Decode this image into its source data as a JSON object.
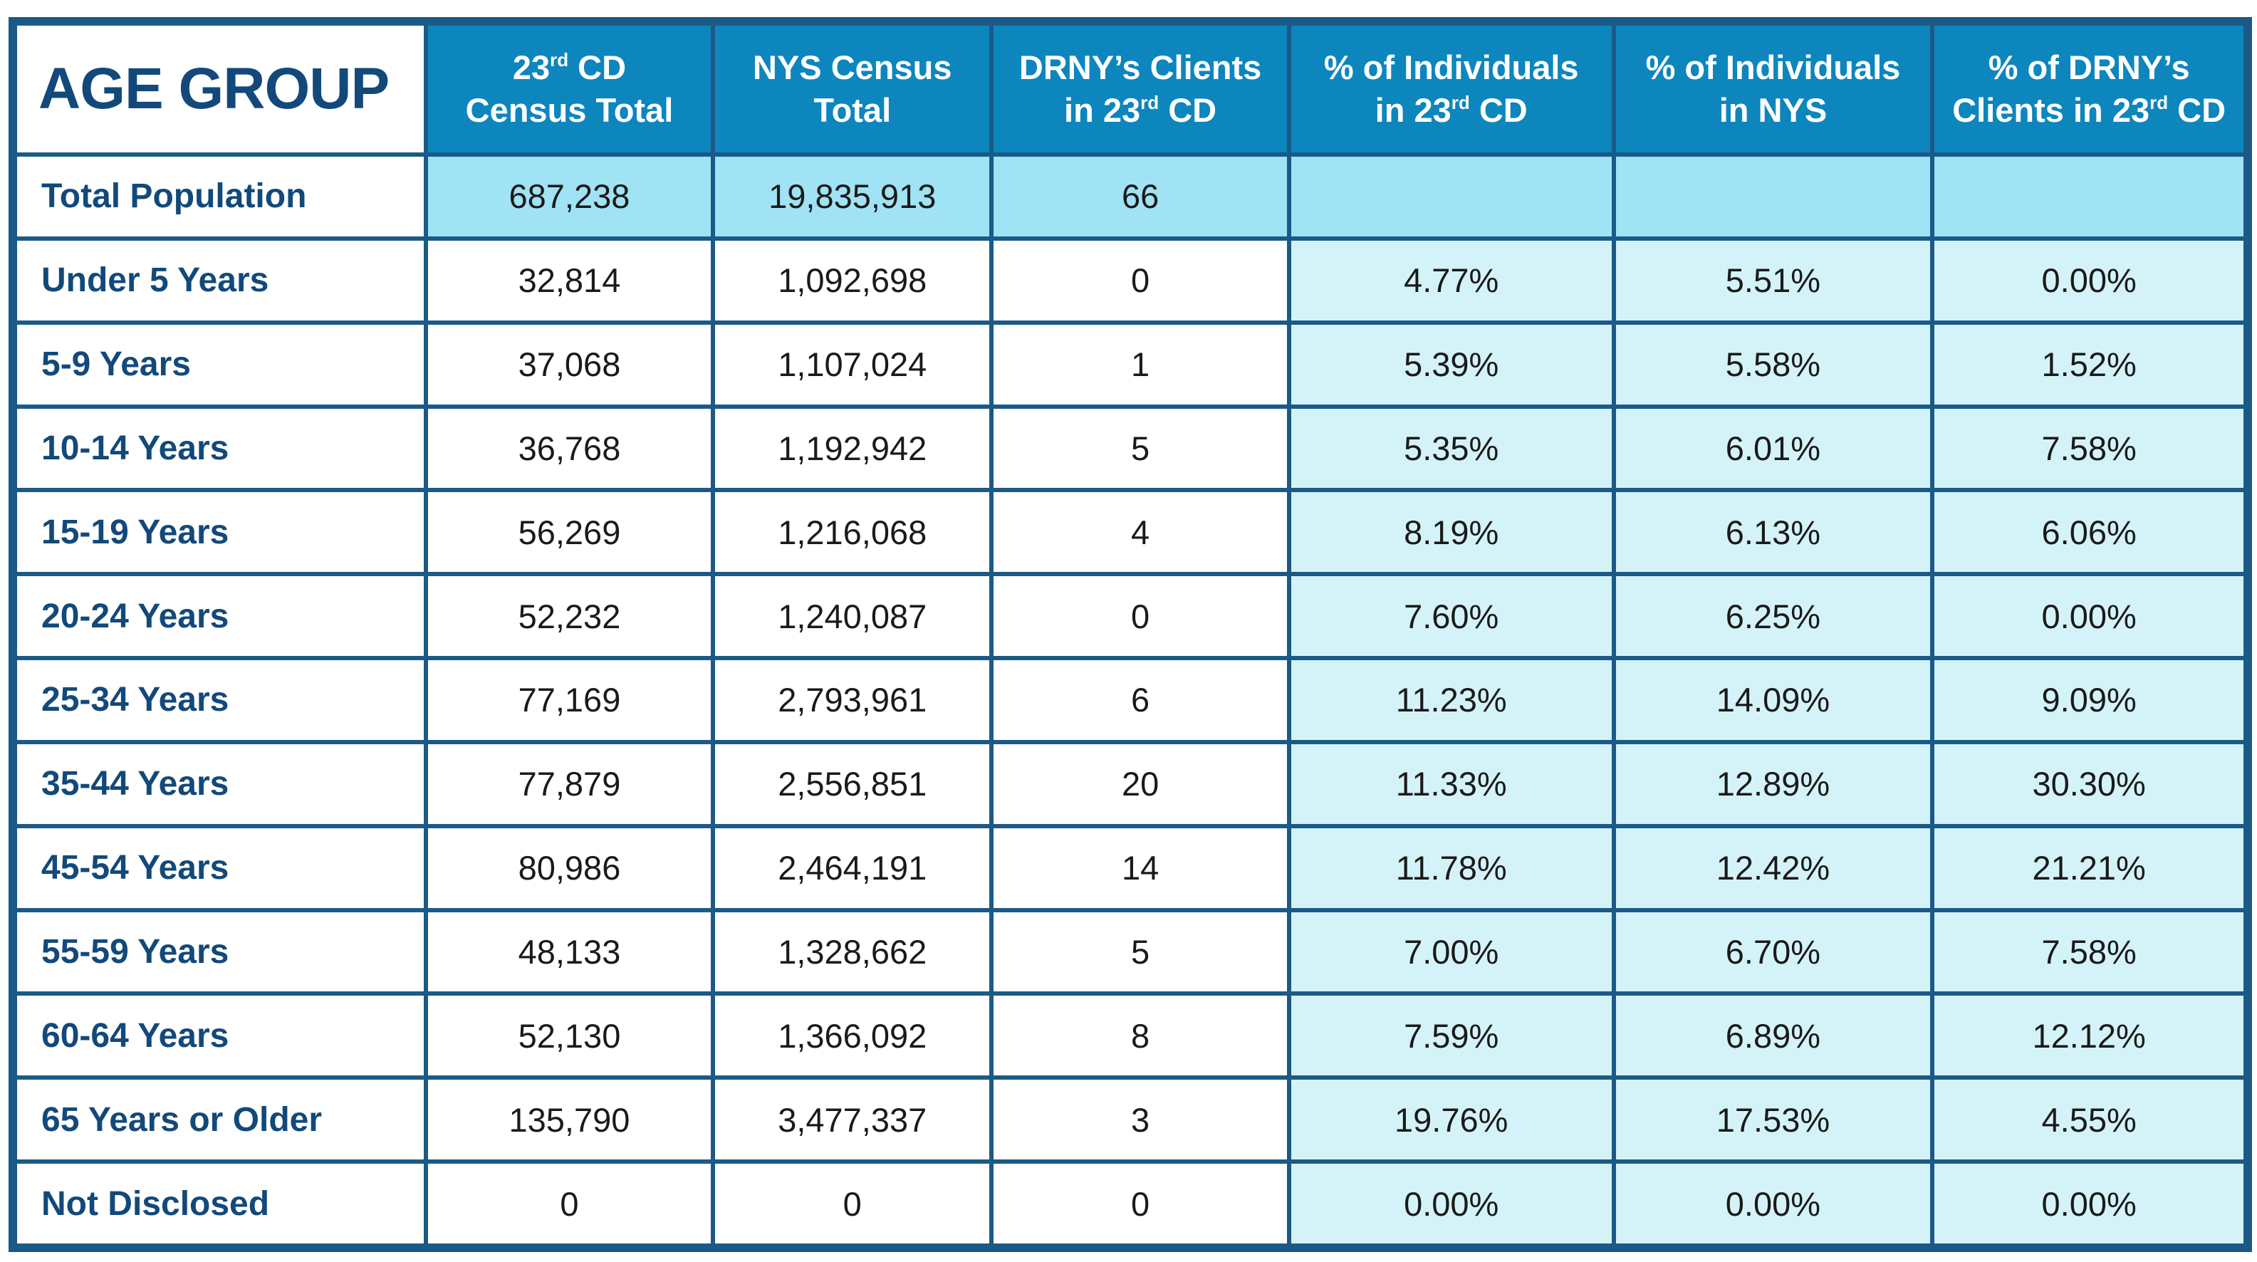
{
  "table": {
    "corner_label": "AGE GROUP",
    "headers": [
      {
        "line1_pre": "23",
        "line1_sup": "rd",
        "line1_post": " CD",
        "line2_pre": "Census Total",
        "line2_sup": "",
        "line2_post": ""
      },
      {
        "line1_pre": "NYS Census",
        "line1_sup": "",
        "line1_post": "",
        "line2_pre": "Total",
        "line2_sup": "",
        "line2_post": ""
      },
      {
        "line1_pre": "DRNY’s Clients",
        "line1_sup": "",
        "line1_post": "",
        "line2_pre": "in 23",
        "line2_sup": "rd",
        "line2_post": " CD"
      },
      {
        "line1_pre": "% of Individuals",
        "line1_sup": "",
        "line1_post": "",
        "line2_pre": "in 23",
        "line2_sup": "rd",
        "line2_post": " CD"
      },
      {
        "line1_pre": "% of Individuals",
        "line1_sup": "",
        "line1_post": "",
        "line2_pre": "in NYS",
        "line2_sup": "",
        "line2_post": ""
      },
      {
        "line1_pre": "% of DRNY’s",
        "line1_sup": "",
        "line1_post": "",
        "line2_pre": "Clients in 23",
        "line2_sup": "rd",
        "line2_post": " CD"
      }
    ],
    "rows": [
      {
        "label": "Total Population",
        "cd_total": "687,238",
        "nys_total": "19,835,913",
        "drny_clients": "66",
        "pct_cd": "",
        "pct_nys": "",
        "pct_drny": ""
      },
      {
        "label": "Under 5 Years",
        "cd_total": "32,814",
        "nys_total": "1,092,698",
        "drny_clients": "0",
        "pct_cd": "4.77%",
        "pct_nys": "5.51%",
        "pct_drny": "0.00%"
      },
      {
        "label": "5-9 Years",
        "cd_total": "37,068",
        "nys_total": "1,107,024",
        "drny_clients": "1",
        "pct_cd": "5.39%",
        "pct_nys": "5.58%",
        "pct_drny": "1.52%"
      },
      {
        "label": "10-14 Years",
        "cd_total": "36,768",
        "nys_total": "1,192,942",
        "drny_clients": "5",
        "pct_cd": "5.35%",
        "pct_nys": "6.01%",
        "pct_drny": "7.58%"
      },
      {
        "label": "15-19 Years",
        "cd_total": "56,269",
        "nys_total": "1,216,068",
        "drny_clients": "4",
        "pct_cd": "8.19%",
        "pct_nys": "6.13%",
        "pct_drny": "6.06%"
      },
      {
        "label": "20-24 Years",
        "cd_total": "52,232",
        "nys_total": "1,240,087",
        "drny_clients": "0",
        "pct_cd": "7.60%",
        "pct_nys": "6.25%",
        "pct_drny": "0.00%"
      },
      {
        "label": "25-34 Years",
        "cd_total": "77,169",
        "nys_total": "2,793,961",
        "drny_clients": "6",
        "pct_cd": "11.23%",
        "pct_nys": "14.09%",
        "pct_drny": "9.09%"
      },
      {
        "label": "35-44 Years",
        "cd_total": "77,879",
        "nys_total": "2,556,851",
        "drny_clients": "20",
        "pct_cd": "11.33%",
        "pct_nys": "12.89%",
        "pct_drny": "30.30%"
      },
      {
        "label": "45-54 Years",
        "cd_total": "80,986",
        "nys_total": "2,464,191",
        "drny_clients": "14",
        "pct_cd": "11.78%",
        "pct_nys": "12.42%",
        "pct_drny": "21.21%"
      },
      {
        "label": "55-59 Years",
        "cd_total": "48,133",
        "nys_total": "1,328,662",
        "drny_clients": "5",
        "pct_cd": "7.00%",
        "pct_nys": "6.70%",
        "pct_drny": "7.58%"
      },
      {
        "label": "60-64 Years",
        "cd_total": "52,130",
        "nys_total": "1,366,092",
        "drny_clients": "8",
        "pct_cd": "7.59%",
        "pct_nys": "6.89%",
        "pct_drny": "12.12%"
      },
      {
        "label": "65 Years or Older",
        "cd_total": "135,790",
        "nys_total": "3,477,337",
        "drny_clients": "3",
        "pct_cd": "19.76%",
        "pct_nys": "17.53%",
        "pct_drny": "4.55%"
      },
      {
        "label": "Not Disclosed",
        "cd_total": "0",
        "nys_total": "0",
        "drny_clients": "0",
        "pct_cd": "0.00%",
        "pct_nys": "0.00%",
        "pct_drny": "0.00%"
      }
    ]
  },
  "colors": {
    "border": "#1b5a86",
    "header_bg": "#0d86bd",
    "label_text": "#12497a",
    "total_row_bg": "#9fe3f4",
    "pct_bg": "#d4f3f9"
  }
}
